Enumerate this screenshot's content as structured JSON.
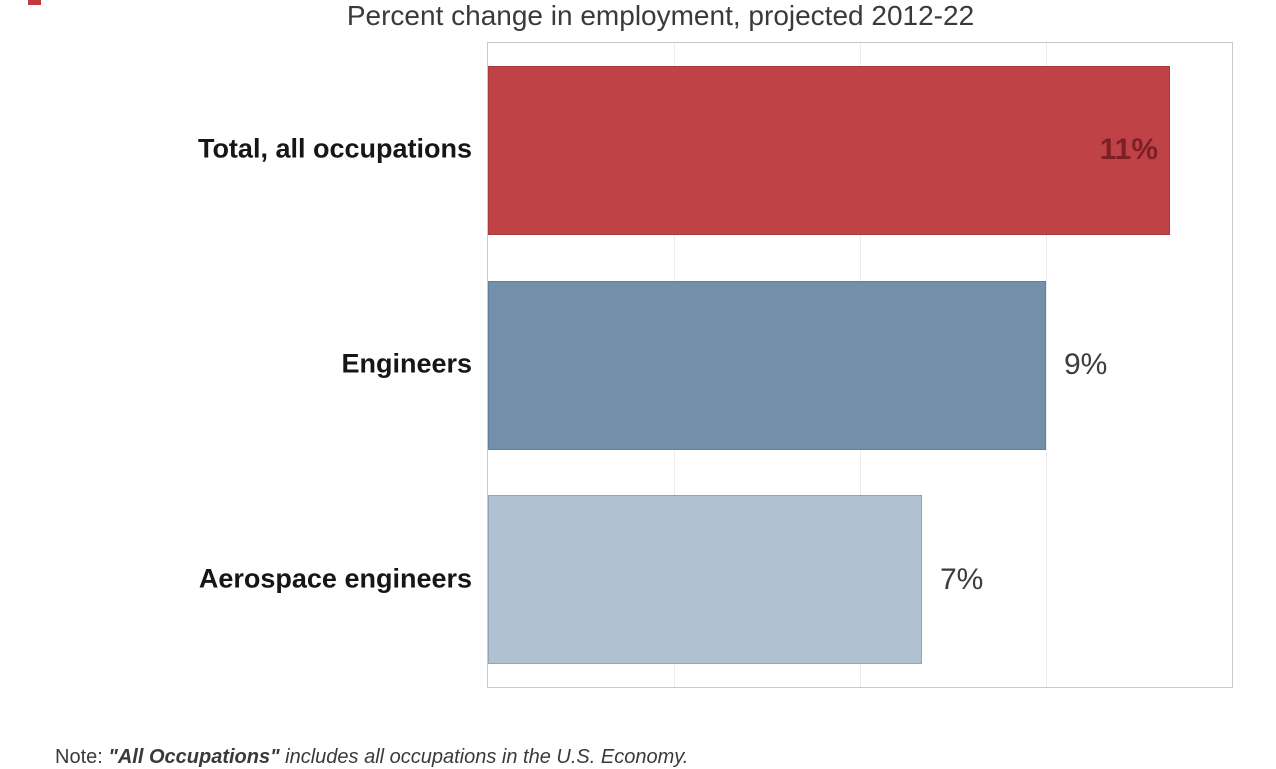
{
  "title": "Percent change in employment, projected 2012-22",
  "note": {
    "prefix": "Note: ",
    "term": "\"All Occupations\"",
    "rest": " includes all occupations in the U.S. Economy."
  },
  "chart_data": {
    "type": "bar",
    "orientation": "horizontal",
    "title": "Percent change in employment, projected 2012-22",
    "categories": [
      "Total, all occupations",
      "Engineers",
      "Aerospace engineers"
    ],
    "values": [
      11,
      9,
      7
    ],
    "value_labels": [
      "11%",
      "9%",
      "7%"
    ],
    "bar_colors": [
      "#bf4247",
      "#7390ab",
      "#b0c2d1"
    ],
    "bar_border_colors": [
      "#a8393f",
      "#5f7f9c",
      "#8fa6b9"
    ],
    "value_label_inside": [
      true,
      false,
      false
    ],
    "value_label_colors": [
      "#7d2026",
      "#3d3d3d",
      "#3d3d3d"
    ],
    "xlabel": "",
    "ylabel": "",
    "xlim": [
      0,
      12
    ],
    "gridlines_x": [
      3,
      6,
      9
    ],
    "grid": "vertical-faint",
    "legend": false,
    "axis_tick_labels_visible": false
  }
}
